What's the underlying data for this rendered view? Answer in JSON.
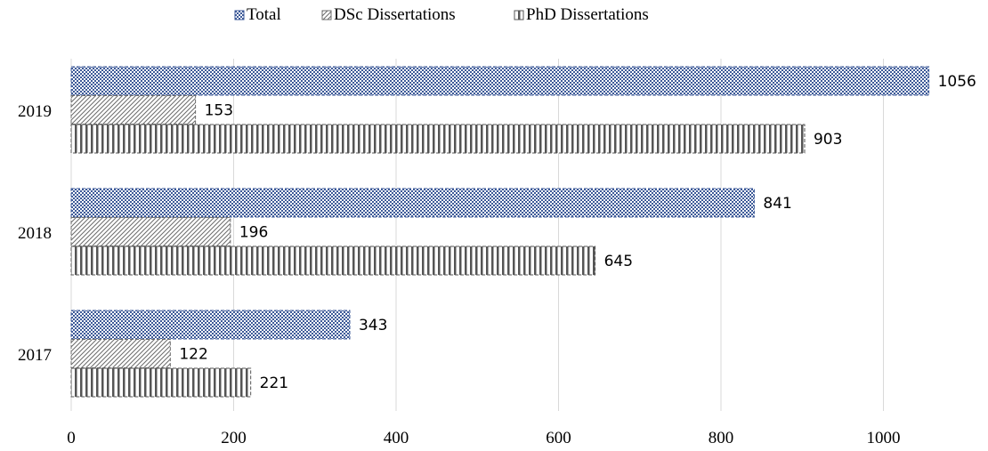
{
  "chart_data": {
    "type": "bar",
    "orientation": "horizontal",
    "categories": [
      "2017",
      "2018",
      "2019"
    ],
    "series": [
      {
        "name": "Total",
        "values": [
          343,
          841,
          1056
        ],
        "pattern": "checker",
        "color": "#3d5a98"
      },
      {
        "name": "DSc Dissertations",
        "values": [
          122,
          196,
          153
        ],
        "pattern": "diagonal",
        "color": "#6b6b6b"
      },
      {
        "name": "PhD Dissertations",
        "values": [
          221,
          645,
          903
        ],
        "pattern": "vertical",
        "color": "#555555"
      }
    ],
    "xlim": [
      0,
      1100
    ],
    "xticks": [
      0,
      200,
      400,
      600,
      800,
      1000
    ],
    "grid": true,
    "legend_position": "top",
    "data_labels": true
  }
}
